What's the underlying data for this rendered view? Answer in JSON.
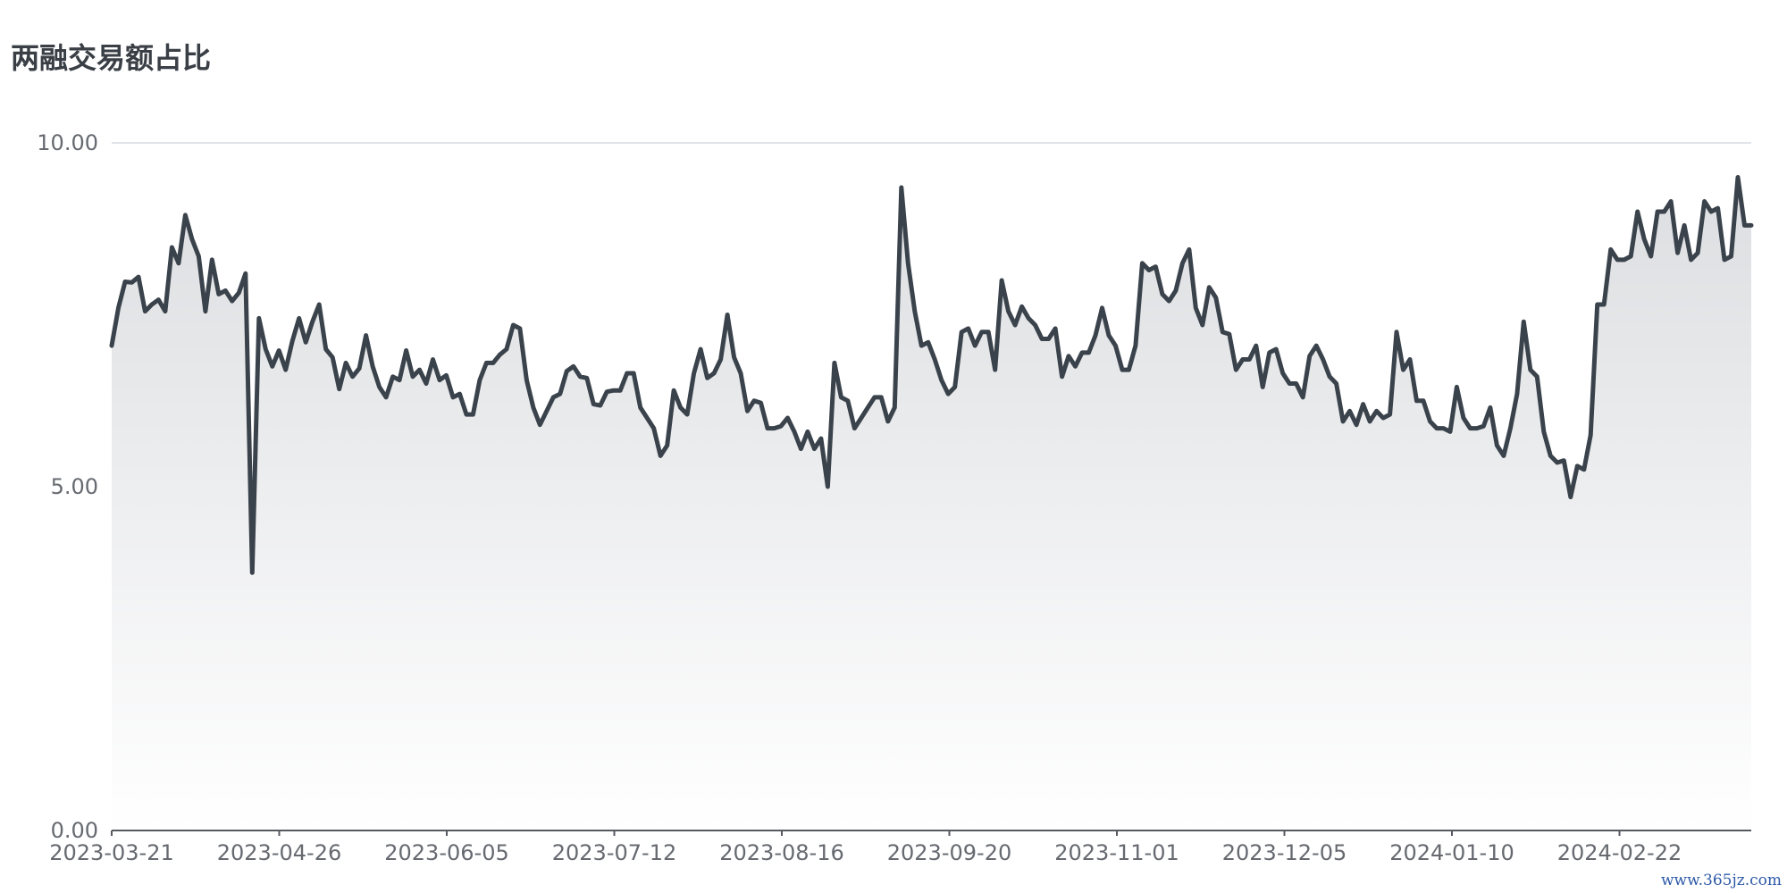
{
  "title": "两融交易额占比",
  "watermark": "www.365jz.com",
  "chart_data": {
    "type": "area",
    "title": "两融交易额占比",
    "xlabel": "",
    "ylabel": "",
    "ylim": [
      0,
      10
    ],
    "yticks": [
      "0.00",
      "5.00",
      "10.00"
    ],
    "xticks": [
      "2023-03-21",
      "2023-04-26",
      "2023-06-05",
      "2023-07-12",
      "2023-08-16",
      "2023-09-20",
      "2023-11-01",
      "2023-12-05",
      "2024-01-10",
      "2024-02-22"
    ],
    "grid": true,
    "legend": "none",
    "colors": {
      "line": "#3a424b",
      "fill_top": "#dcdee1",
      "fill_bottom": "#ffffff",
      "grid": "#d7dbe0",
      "axis": "#555a60"
    },
    "values": [
      7.05,
      7.6,
      7.98,
      7.97,
      8.05,
      7.55,
      7.65,
      7.72,
      7.55,
      8.48,
      8.25,
      8.95,
      8.6,
      8.35,
      7.55,
      8.3,
      7.8,
      7.85,
      7.7,
      7.82,
      8.1,
      3.75,
      7.45,
      7.0,
      6.75,
      6.98,
      6.7,
      7.12,
      7.45,
      7.1,
      7.4,
      7.65,
      7.0,
      6.88,
      6.42,
      6.8,
      6.6,
      6.72,
      7.2,
      6.75,
      6.45,
      6.3,
      6.6,
      6.55,
      6.98,
      6.6,
      6.7,
      6.5,
      6.85,
      6.55,
      6.62,
      6.3,
      6.35,
      6.05,
      6.05,
      6.55,
      6.8,
      6.8,
      6.92,
      7.0,
      7.35,
      7.3,
      6.55,
      6.15,
      5.9,
      6.1,
      6.3,
      6.35,
      6.68,
      6.75,
      6.6,
      6.58,
      6.2,
      6.18,
      6.38,
      6.4,
      6.4,
      6.65,
      6.65,
      6.15,
      6.0,
      5.85,
      5.45,
      5.6,
      6.4,
      6.15,
      6.05,
      6.65,
      7.0,
      6.58,
      6.65,
      6.85,
      7.5,
      6.88,
      6.65,
      6.1,
      6.25,
      6.22,
      5.85,
      5.85,
      5.88,
      6.0,
      5.8,
      5.55,
      5.8,
      5.55,
      5.7,
      5.0,
      6.8,
      6.3,
      6.25,
      5.85,
      6.0,
      6.15,
      6.3,
      6.3,
      5.95,
      6.15,
      9.35,
      8.25,
      7.55,
      7.05,
      7.1,
      6.85,
      6.55,
      6.35,
      6.45,
      7.25,
      7.3,
      7.05,
      7.25,
      7.25,
      6.7,
      8.0,
      7.55,
      7.35,
      7.62,
      7.45,
      7.35,
      7.15,
      7.15,
      7.3,
      6.6,
      6.9,
      6.75,
      6.95,
      6.95,
      7.2,
      7.6,
      7.2,
      7.05,
      6.7,
      6.7,
      7.05,
      8.25,
      8.15,
      8.2,
      7.8,
      7.7,
      7.85,
      8.25,
      8.45,
      7.6,
      7.35,
      7.9,
      7.75,
      7.25,
      7.22,
      6.7,
      6.85,
      6.85,
      7.05,
      6.45,
      6.95,
      7.0,
      6.65,
      6.5,
      6.5,
      6.3,
      6.9,
      7.05,
      6.85,
      6.6,
      6.5,
      5.95,
      6.1,
      5.9,
      6.2,
      5.95,
      6.1,
      6.0,
      6.05,
      7.25,
      6.7,
      6.85,
      6.25,
      6.25,
      5.95,
      5.85,
      5.85,
      5.8,
      6.45,
      6.0,
      5.85,
      5.85,
      5.88,
      6.15,
      5.6,
      5.45,
      5.85,
      6.35,
      7.4,
      6.7,
      6.6,
      5.8,
      5.45,
      5.35,
      5.38,
      4.85,
      5.3,
      5.25,
      5.75,
      7.65,
      7.65,
      8.45,
      8.3,
      8.3,
      8.35,
      9.0,
      8.6,
      8.35,
      9.0,
      9.0,
      9.15,
      8.4,
      8.8,
      8.3,
      8.4,
      9.15,
      9.0,
      9.05,
      8.3,
      8.35,
      9.5,
      8.8,
      8.8
    ]
  }
}
